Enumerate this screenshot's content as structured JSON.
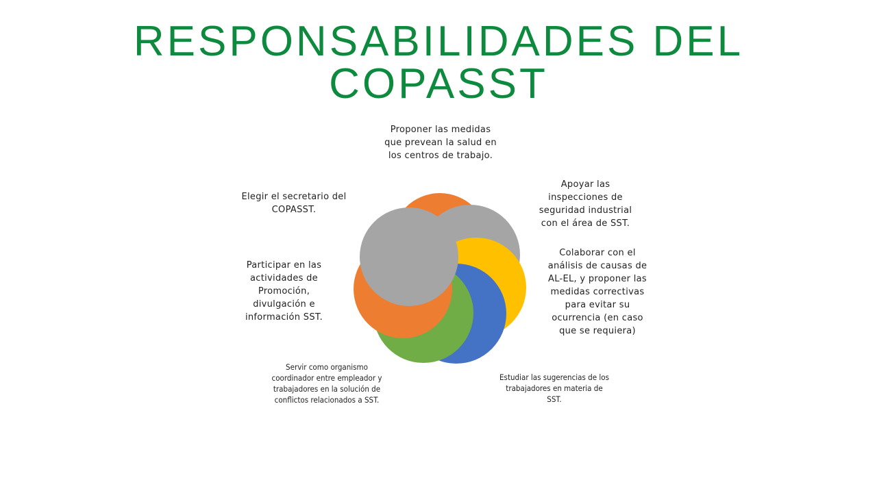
{
  "title": {
    "line1": "RESPONSABILIDADES DEL",
    "line2": "COPASST"
  },
  "colors": {
    "title": "#0e8a3e",
    "orange": "#ed7d31",
    "gray": "#a5a5a5",
    "yellow": "#ffc000",
    "blue": "#4472c4",
    "green": "#70ad47"
  },
  "labels": {
    "proponer": "Proponer las medidas que prevean la salud en los centros de trabajo.",
    "apoyar": "Apoyar las inspecciones de seguridad industrial con el área de SST.",
    "colaborar": "Colaborar con el análisis de causas de AL-EL, y proponer las medidas correctivas para evitar su ocurrencia (en caso que se requiera)",
    "estudiar": "Estudiar las sugerencias de los trabajadores en materia de SST.",
    "servir": "Servir como organismo coordinador entre empleador y trabajadores en la solución de conflictos relacionados a SST.",
    "participar": "Participar en las actividades de Promoción, divulgación e información SST.",
    "elegir": "Elegir el secretario del COPASST."
  }
}
